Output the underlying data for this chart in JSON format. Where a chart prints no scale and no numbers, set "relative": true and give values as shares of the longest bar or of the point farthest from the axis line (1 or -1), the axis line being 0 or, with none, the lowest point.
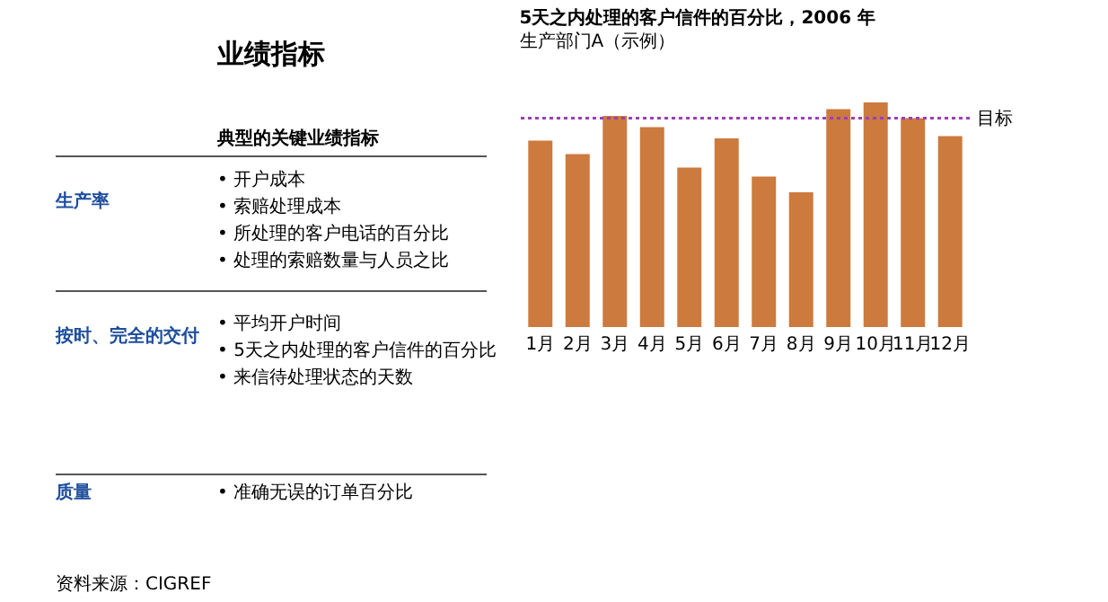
{
  "chart_data": [
    {
      "type": "other",
      "title": "业绩指标",
      "subtitle": "典型的关键业绩指标",
      "categories": [
        "生产率",
        "按时、完全的交付",
        "质量"
      ],
      "annotations": [
        "• 开户成本",
        "• 索赔处理成本",
        "• 所处理的客户电话的百分比",
        "• 处理的索赔数量与人员之比",
        "• 平均开户时间",
        "• 5天之内处理的客户信件的百分比",
        "• 来信待处理状态的天数",
        "• 准确无误的订单百分比",
        "资料来源：CIGREF"
      ]
    },
    {
      "type": "bar",
      "title": "5天之内处理的客户信件的百分比，2006 年",
      "subtitle": "生产部门A（示例）",
      "categories": [
        "1月",
        "2月",
        "3月",
        "4月",
        "5月",
        "6月",
        "7月",
        "8月",
        "9月",
        "10月",
        "11月",
        "12月"
      ],
      "values": [
        0.83,
        0.77,
        0.94,
        0.89,
        0.71,
        0.84,
        0.67,
        0.6,
        0.97,
        1,
        0.93,
        0.85
      ],
      "color": "#cc7a3e",
      "relative": true,
      "grid": false,
      "ref_lines": [
        {
          "axis": "y",
          "value": 0.93,
          "label": "目标",
          "color": "#9b3fb5",
          "line_style": "dotted"
        }
      ]
    }
  ]
}
